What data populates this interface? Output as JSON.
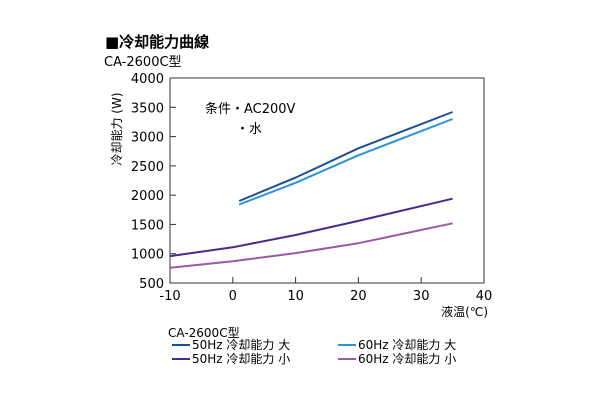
{
  "chart_data": {
    "type": "line",
    "title": "■冷却能力曲線",
    "subtitle": "CA-2600C型",
    "ylabel": "冷却能力 (W)",
    "xlabel": "液温(℃)",
    "xlim": [
      -10,
      40
    ],
    "ylim": [
      500,
      4000
    ],
    "x_ticks": [
      "-10",
      "0",
      "10",
      "20",
      "30",
      "40"
    ],
    "y_ticks": [
      "500",
      "1000",
      "1500",
      "2000",
      "2500",
      "3000",
      "3500",
      "4000"
    ],
    "annotation": [
      "条件・AC200V",
      "・水"
    ],
    "legend_title": "CA-2600C型",
    "series": [
      {
        "name": "50Hz 冷却能力 大",
        "color": "#1e4f91",
        "x": [
          1,
          10,
          20,
          35
        ],
        "y": [
          1900,
          2300,
          2800,
          3420
        ]
      },
      {
        "name": "60Hz 冷却能力 大",
        "color": "#2b93d8",
        "x": [
          1,
          10,
          20,
          35
        ],
        "y": [
          1840,
          2210,
          2680,
          3300
        ]
      },
      {
        "name": "50Hz 冷却能力 小",
        "color": "#4a2a8a",
        "x": [
          -10,
          0,
          10,
          20,
          35
        ],
        "y": [
          960,
          1110,
          1320,
          1560,
          1940
        ]
      },
      {
        "name": "60Hz 冷却能力 小",
        "color": "#9a5aa6",
        "x": [
          -10,
          0,
          10,
          20,
          35
        ],
        "y": [
          760,
          870,
          1010,
          1180,
          1520
        ]
      }
    ]
  }
}
